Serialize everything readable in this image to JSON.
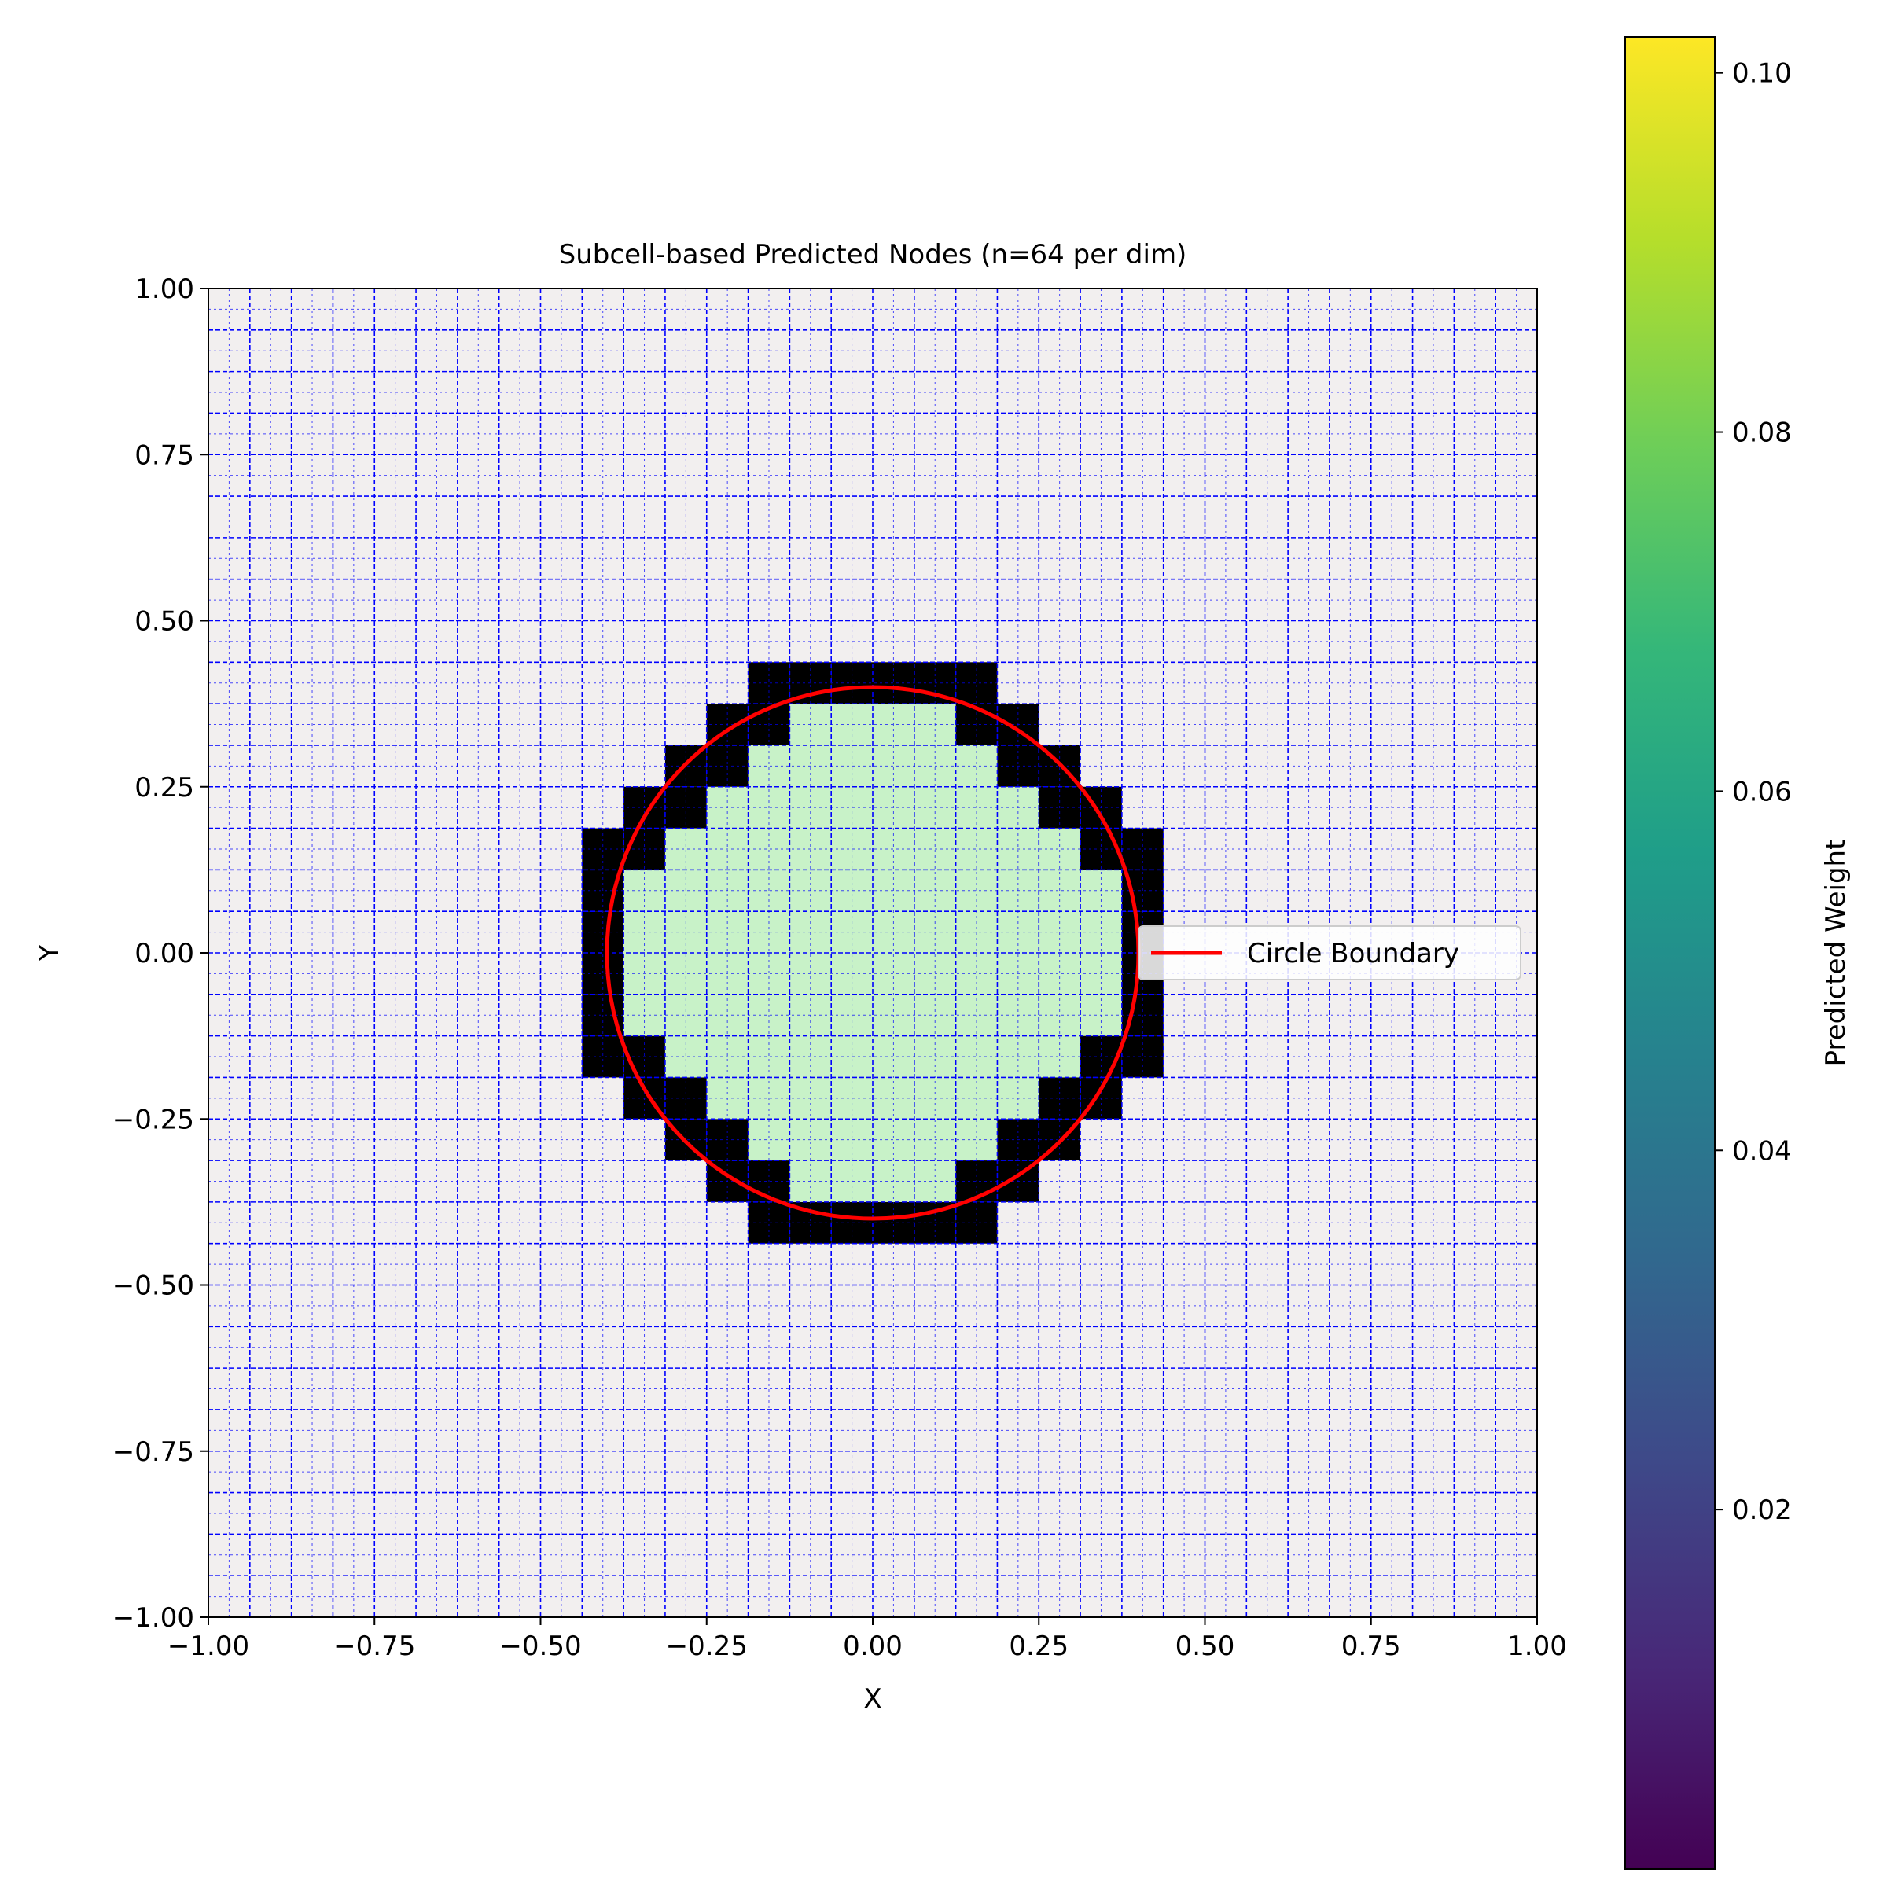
{
  "chart_data": {
    "type": "scatter",
    "title": "Subcell-based Predicted Nodes (n=64 per dim)",
    "xlabel": "X",
    "ylabel": "Y",
    "xlim": [
      -1.0,
      1.0
    ],
    "ylim": [
      -1.0,
      1.0
    ],
    "x_ticks": [
      "−1.00",
      "−0.75",
      "−0.50",
      "−0.25",
      "0.00",
      "0.25",
      "0.50",
      "0.75",
      "1.00"
    ],
    "y_ticks": [
      "−1.00",
      "−0.75",
      "−0.50",
      "−0.25",
      "0.00",
      "0.25",
      "0.50",
      "0.75",
      "1.00"
    ],
    "x_tick_values": [
      -1.0,
      -0.75,
      -0.5,
      -0.25,
      0.0,
      0.25,
      0.5,
      0.75,
      1.0
    ],
    "y_tick_values": [
      -1.0,
      -0.75,
      -0.5,
      -0.25,
      0.0,
      0.25,
      0.5,
      0.75,
      1.0
    ],
    "cells_per_dim": 32,
    "circle": {
      "cx": 0.0,
      "cy": 0.0,
      "r": 0.4
    },
    "inside_region_color": "#c8f2c8",
    "outside_region_color": "#f2efef",
    "grid_line_color": "#0000ff",
    "boundary_node_color": "#000000",
    "legend": {
      "entries": [
        {
          "label": "Circle Boundary",
          "color": "#ff0000"
        }
      ],
      "placement": "center-right"
    },
    "colorbar": {
      "label": "Predicted Weight",
      "min": 0.0,
      "max": 0.102,
      "ticks": [
        "0.02",
        "0.04",
        "0.06",
        "0.08",
        "0.10"
      ],
      "tick_values": [
        0.02,
        0.04,
        0.06,
        0.08,
        0.1
      ],
      "colormap": [
        "#440154",
        "#482878",
        "#3e4989",
        "#31688e",
        "#26828e",
        "#1f9e89",
        "#35b779",
        "#6ece58",
        "#b5de2b",
        "#fde725"
      ]
    }
  }
}
